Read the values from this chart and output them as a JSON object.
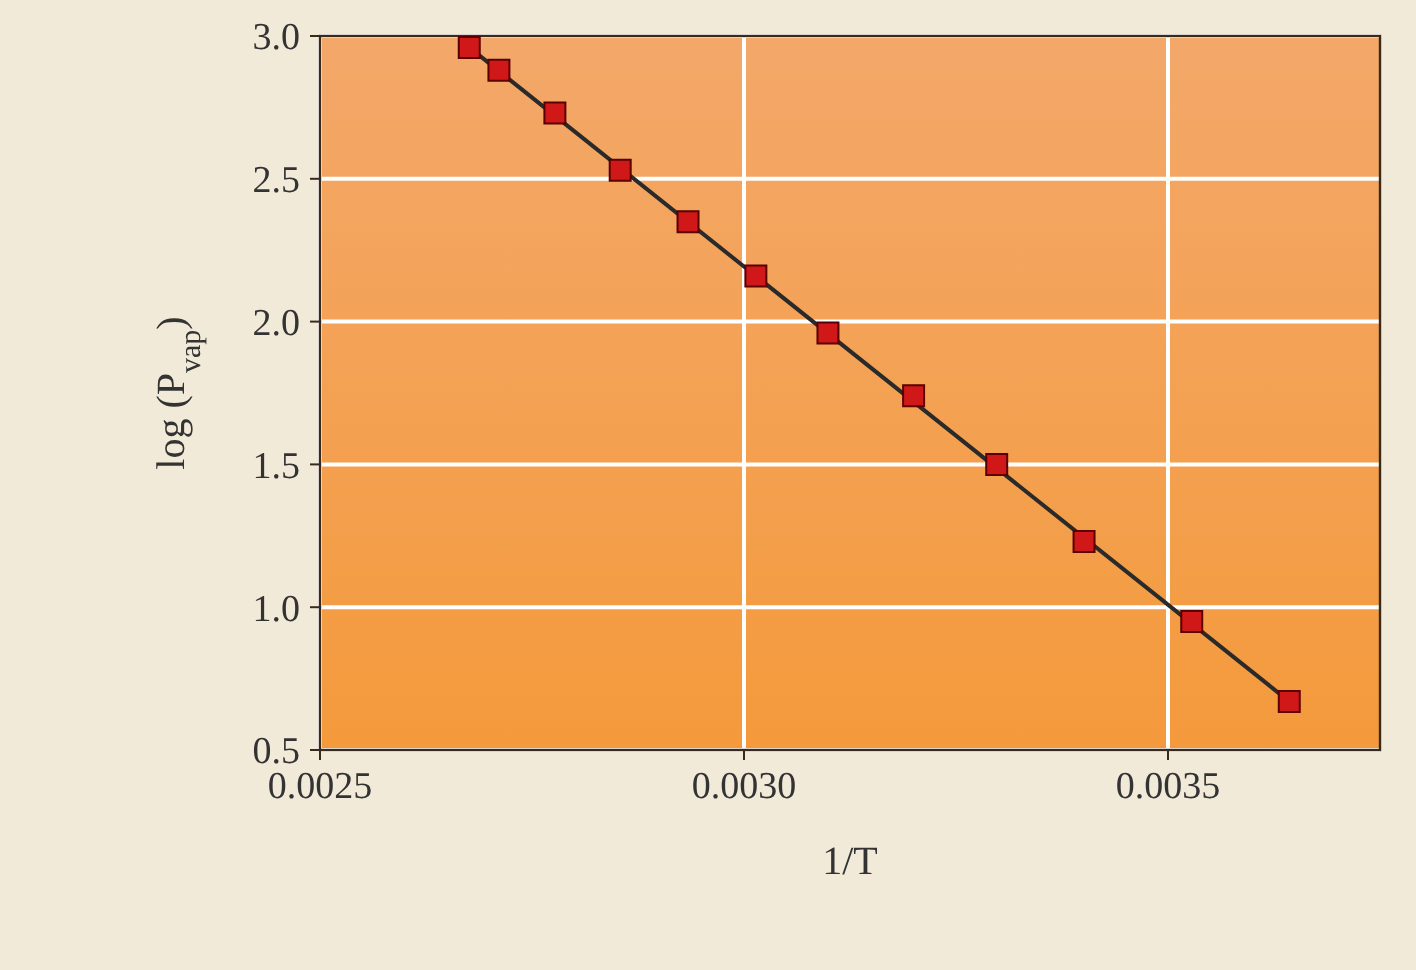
{
  "chart_data": {
    "type": "scatter",
    "xlabel": "1/T",
    "ylabel": "log (P$_{vap}$)",
    "xlim": [
      0.0025,
      0.00375
    ],
    "ylim": [
      0.5,
      3.0
    ],
    "xticks": [
      {
        "value": 0.0025,
        "label": "0.0025"
      },
      {
        "value": 0.003,
        "label": "0.0030"
      },
      {
        "value": 0.0035,
        "label": "0.0035"
      }
    ],
    "yticks": [
      {
        "value": 0.5,
        "label": "0.5"
      },
      {
        "value": 1,
        "label": "1.0"
      },
      {
        "value": 1.5,
        "label": "1.5"
      },
      {
        "value": 2,
        "label": "2.0"
      },
      {
        "value": 2.5,
        "label": "2.5"
      },
      {
        "value": 3,
        "label": "3.0"
      }
    ],
    "grid": true,
    "series": [
      {
        "type": "line",
        "color": "#2a2a2a",
        "marker": "none",
        "x": [
          0.002676,
          0.003643
        ],
        "values": [
          2.96,
          0.67
        ]
      },
      {
        "color": "#d01818",
        "marker": "square",
        "x": [
          0.002676,
          0.002711,
          0.002777,
          0.002854,
          0.002934,
          0.003014,
          0.003099,
          0.0032,
          0.003298,
          0.003401,
          0.003528,
          0.003643
        ],
        "values": [
          2.96,
          2.88,
          2.73,
          2.53,
          2.35,
          2.16,
          1.96,
          1.74,
          1.5,
          1.23,
          0.95,
          0.67
        ]
      }
    ]
  }
}
